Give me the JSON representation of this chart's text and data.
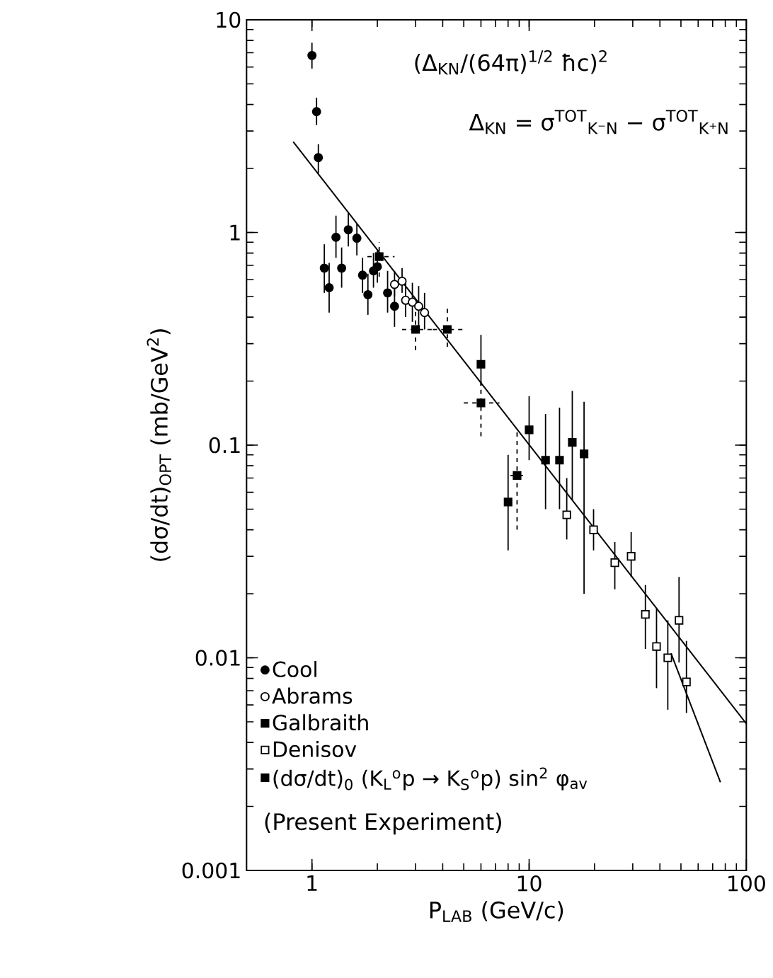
{
  "chart_data": {
    "type": "scatter",
    "xlabel": "P$_{LAB}$ (GeV/c)",
    "ylabel": "(dσ/dt)$_{OPT}$ (mb/GeV$^{2}$)",
    "log": "xy",
    "xlim": [
      0.5,
      100
    ],
    "ylim": [
      0.001,
      10
    ],
    "xticks": [
      1,
      10,
      100
    ],
    "yticks": [
      0.001,
      0.01,
      0.1,
      1,
      10
    ],
    "legend": "bottom left",
    "series": [
      {
        "name": "Cool",
        "color": "#000000",
        "marker": "circle",
        "x": [
          1.0,
          1.05,
          1.07,
          1.14,
          1.2,
          1.29,
          1.37,
          1.47,
          1.61,
          1.71,
          1.81,
          1.92,
          2.0,
          2.23,
          2.4
        ],
        "values": [
          6.8,
          3.7,
          2.25,
          0.68,
          0.55,
          0.95,
          0.68,
          1.03,
          0.94,
          0.63,
          0.51,
          0.66,
          0.69,
          0.52,
          0.45
        ],
        "errors": [
          [
            5.9,
            7.8
          ],
          [
            3.2,
            4.3
          ],
          [
            1.9,
            2.6
          ],
          [
            0.52,
            0.88
          ],
          [
            0.42,
            0.72
          ],
          [
            0.76,
            1.2
          ],
          [
            0.55,
            0.85
          ],
          [
            0.86,
            1.25
          ],
          [
            0.78,
            1.1
          ],
          [
            0.52,
            0.76
          ],
          [
            0.41,
            0.64
          ],
          [
            0.55,
            0.8
          ],
          [
            0.58,
            0.82
          ],
          [
            0.42,
            0.66
          ],
          [
            0.36,
            0.58
          ]
        ]
      },
      {
        "name": "Abrams",
        "color": "#ffffff",
        "marker": "circle",
        "x": [
          2.4,
          2.6,
          2.7,
          2.9,
          3.1,
          3.3
        ],
        "values": [
          0.57,
          0.59,
          0.48,
          0.47,
          0.45,
          0.42
        ],
        "errors": [
          [
            0.5,
            0.66
          ],
          [
            0.52,
            0.68
          ],
          [
            0.4,
            0.58
          ],
          [
            0.38,
            0.58
          ],
          [
            0.36,
            0.56
          ],
          [
            0.35,
            0.52
          ]
        ]
      },
      {
        "name": "Galbraith",
        "color": "#000000",
        "marker": "square",
        "x": [
          6.0,
          8.0,
          10.0,
          11.9,
          13.8,
          15.8,
          17.9
        ],
        "values": [
          0.24,
          0.054,
          0.118,
          0.085,
          0.085,
          0.103,
          0.091
        ],
        "errors": [
          [
            0.19,
            0.33
          ],
          [
            0.032,
            0.09
          ],
          [
            0.085,
            0.17
          ],
          [
            0.05,
            0.14
          ],
          [
            0.05,
            0.15
          ],
          [
            0.055,
            0.18
          ],
          [
            0.02,
            0.16
          ]
        ]
      },
      {
        "name": "Denisov",
        "color": "#ffffff",
        "marker": "square",
        "x": [
          14.9,
          19.8,
          24.8,
          29.5,
          34.3,
          38.6,
          43.5,
          49,
          53
        ],
        "values": [
          0.047,
          0.04,
          0.028,
          0.03,
          0.016,
          0.0113,
          0.01,
          0.015,
          0.0077
        ],
        "errors": [
          [
            0.036,
            0.07
          ],
          [
            0.032,
            0.05
          ],
          [
            0.021,
            0.035
          ],
          [
            0.024,
            0.039
          ],
          [
            0.011,
            0.022
          ],
          [
            0.0072,
            0.017
          ],
          [
            0.0057,
            0.015
          ],
          [
            0.0095,
            0.024
          ],
          [
            0.0055,
            0.012
          ]
        ]
      },
      {
        "name": "(dσ/dt)$_{0}$ (K$_{L}$$^{o}$p → K$_{S}$$^{o}$p) sin$^{2}$ φ$_{av}$",
        "color": "#000000",
        "marker": "square",
        "line_style": "dashed",
        "x": [
          2.04,
          3.0,
          4.2,
          6.0,
          8.8
        ],
        "values": [
          0.77,
          0.35,
          0.35,
          0.158,
          0.072
        ],
        "errors": [
          [
            0.62,
            0.9
          ],
          [
            0.28,
            0.43
          ],
          [
            0.29,
            0.44
          ],
          [
            0.11,
            0.2
          ],
          [
            0.04,
            0.12
          ]
        ],
        "xerrors": [
          [
            1.8,
            2.4
          ],
          [
            2.6,
            3.6
          ],
          [
            3.6,
            5.0
          ],
          [
            5.0,
            7.3
          ],
          [
            8.2,
            9.6
          ]
        ]
      },
      {
        "type": "line",
        "color": "#000000",
        "x": [
          0.82,
          100
        ],
        "values": [
          2.67,
          0.0049
        ]
      },
      {
        "type": "line",
        "color": "#000000",
        "x": [
          45,
          76
        ],
        "values": [
          0.0105,
          0.0026
        ]
      }
    ],
    "annotations": [
      "(Δ$_{KN}$/(64π)$^{1/2}$ ħc)$^{2}$",
      "Δ$_{KN}$ = σ$^{TOT}$$_{K⁻N}$ − σ$^{TOT}$$_{K⁺N}$",
      "(Present Experiment)"
    ]
  }
}
